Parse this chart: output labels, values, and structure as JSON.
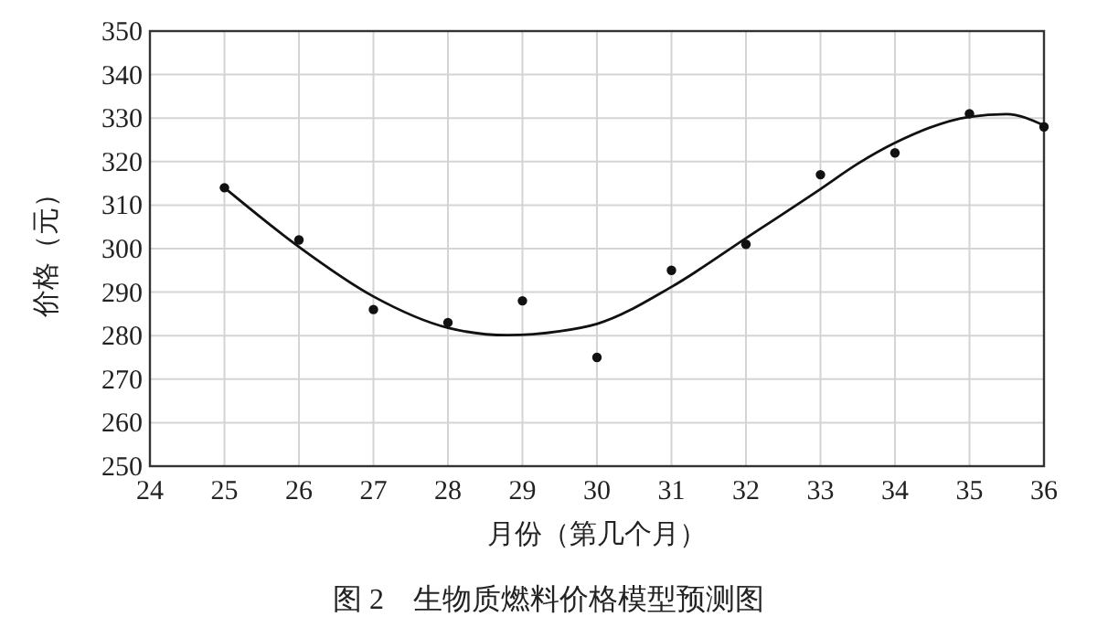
{
  "chart_data": {
    "type": "scatter",
    "title": "图 2　生物质燃料价格模型预测图",
    "xlabel": "月份（第几个月）",
    "ylabel": "价格（元）",
    "xlim": [
      24,
      36
    ],
    "xticks": [
      24,
      25,
      26,
      27,
      28,
      29,
      30,
      31,
      32,
      33,
      34,
      35,
      36
    ],
    "ylim": [
      250,
      350
    ],
    "yticks": [
      250,
      260,
      270,
      280,
      290,
      300,
      310,
      320,
      330,
      340,
      350
    ],
    "grid": true,
    "series": [
      {
        "color": "#111111",
        "marker": "circle",
        "x": [
          25,
          26,
          27,
          28,
          29,
          30,
          31,
          32,
          33,
          34,
          35,
          36
        ],
        "values": [
          314,
          302,
          286,
          283,
          288,
          275,
          295,
          301,
          317,
          322,
          331,
          328
        ]
      },
      {
        "type": "line",
        "color": "#111111",
        "marker": "none",
        "line_style": "solid",
        "x": [
          25,
          26,
          27,
          28,
          28.8,
          29.5,
          30,
          31,
          32,
          33,
          33.5,
          34,
          35,
          35.5,
          36
        ],
        "values": [
          314,
          300.4,
          289,
          281.8,
          280.1,
          281,
          282.7,
          291.2,
          302.4,
          313.7,
          319.5,
          324.3,
          330.3,
          330.9,
          328.3
        ]
      }
    ]
  }
}
